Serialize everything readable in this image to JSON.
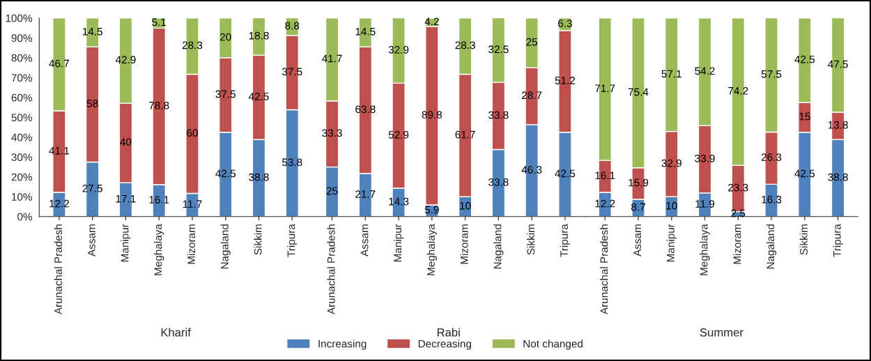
{
  "chart_data": [
    {
      "type": "bar",
      "stacked": true,
      "xlabel": "Kharif",
      "categories": [
        "Arunachal Pradesh",
        "Assam",
        "Manipur",
        "Meghalaya",
        "Mizoram",
        "Nagaland",
        "Sikkim",
        "Tripura"
      ],
      "ylim": [
        0,
        100
      ],
      "yticks": [
        {
          "value": 0,
          "label": "0%"
        },
        {
          "value": 10,
          "label": "10%"
        },
        {
          "value": 20,
          "label": "20%"
        },
        {
          "value": 30,
          "label": "30%"
        },
        {
          "value": 40,
          "label": "40%"
        },
        {
          "value": 50,
          "label": "50%"
        },
        {
          "value": 60,
          "label": "60%"
        },
        {
          "value": 70,
          "label": "70%"
        },
        {
          "value": 80,
          "label": "80%"
        },
        {
          "value": 90,
          "label": "90%"
        },
        {
          "value": 100,
          "label": "100%"
        }
      ],
      "data_labels": true,
      "legend": "bottom",
      "grid": false,
      "series": [
        {
          "name": "Increasing",
          "color": "#4f81bd",
          "values": [
            12.2,
            27.5,
            17.1,
            16.1,
            11.7,
            42.5,
            38.8,
            53.8
          ]
        },
        {
          "name": "Decreasing",
          "color": "#c0504d",
          "values": [
            41.1,
            58,
            40,
            78.8,
            60,
            37.5,
            42.5,
            37.5
          ]
        },
        {
          "name": "Not changed",
          "color": "#9bbb59",
          "values": [
            46.7,
            14.5,
            42.9,
            5.1,
            28.3,
            20,
            18.8,
            8.8
          ]
        }
      ]
    },
    {
      "type": "bar",
      "stacked": true,
      "xlabel": "Rabi",
      "categories": [
        "Arunachal Pradesh",
        "Assam",
        "Manipur",
        "Meghalaya",
        "Mizoram",
        "Nagaland",
        "Sikkim",
        "Tripura"
      ],
      "ylim": [
        0,
        100
      ],
      "tick_labels": "x",
      "data_labels": true,
      "grid": false,
      "series": [
        {
          "color": "#4f81bd",
          "values": [
            25,
            21.7,
            14.3,
            5.9,
            10,
            33.8,
            46.3,
            42.5
          ]
        },
        {
          "color": "#c0504d",
          "values": [
            33.3,
            63.8,
            52.9,
            89.8,
            61.7,
            33.8,
            28.7,
            51.2
          ]
        },
        {
          "color": "#9bbb59",
          "values": [
            41.7,
            14.5,
            32.9,
            4.2,
            28.3,
            32.5,
            25,
            6.3
          ]
        }
      ]
    },
    {
      "type": "bar",
      "stacked": true,
      "xlabel": "Summer",
      "categories": [
        "Arunachal Pradesh",
        "Assam",
        "Manipur",
        "Meghalaya",
        "Mizoram",
        "Nagaland",
        "Sikkim",
        "Tripura"
      ],
      "ylim": [
        0,
        100
      ],
      "tick_labels": "x",
      "data_labels": true,
      "grid": false,
      "series": [
        {
          "color": "#4f81bd",
          "values": [
            12.2,
            8.7,
            10,
            11.9,
            2.5,
            16.3,
            42.5,
            38.8
          ]
        },
        {
          "color": "#c0504d",
          "values": [
            16.1,
            15.9,
            32.9,
            33.9,
            23.3,
            26.3,
            15,
            13.8
          ]
        },
        {
          "color": "#9bbb59",
          "values": [
            71.7,
            75.4,
            57.1,
            54.2,
            74.2,
            57.5,
            42.5,
            47.5
          ]
        }
      ]
    }
  ]
}
